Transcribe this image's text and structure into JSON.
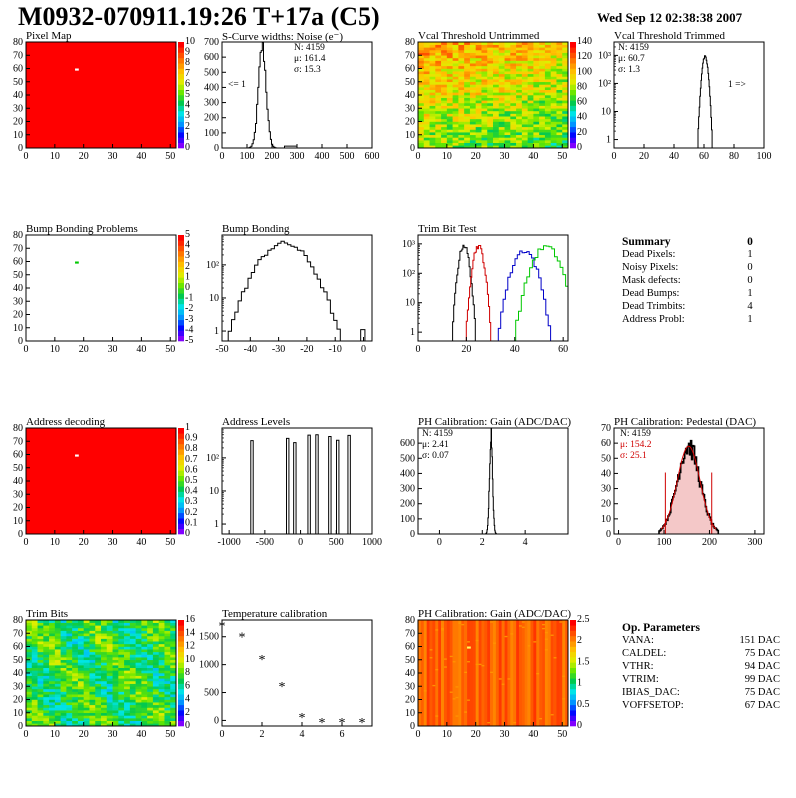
{
  "header": {
    "title": "M0932-070911.19:26 T+17a (C5)",
    "date": "Wed Sep 12 02:38:38 2007"
  },
  "colors": {
    "frame": "#000000",
    "hist_line": "#000000",
    "red_series": "#d00000",
    "blue_series": "#0000c8",
    "green_series": "#00c800",
    "map_red": "#ff0000"
  },
  "chart_data": [
    {
      "id": "pixel-map",
      "type": "heatmap",
      "title": "Pixel Map",
      "xlim": [
        0,
        52
      ],
      "ylim": [
        0,
        80
      ],
      "xticks": [
        0,
        10,
        20,
        30,
        40,
        50
      ],
      "yticks": [
        0,
        10,
        20,
        30,
        40,
        50,
        60,
        70,
        80
      ],
      "zlim": [
        0,
        10
      ],
      "zticks": [
        0,
        1,
        2,
        3,
        4,
        5,
        6,
        7,
        8,
        9,
        10
      ],
      "fill": "uniform",
      "fill_value": 10,
      "special_pixel": [
        17,
        59
      ]
    },
    {
      "id": "noise",
      "type": "line",
      "title": "S-Curve widths: Noise (e⁻)",
      "xlim": [
        0,
        600
      ],
      "ylim": [
        0,
        700
      ],
      "xticks": [
        0,
        100,
        200,
        300,
        400,
        500,
        600
      ],
      "yticks": [
        0,
        100,
        200,
        300,
        400,
        500,
        600,
        700
      ],
      "peak_mu": 161.4,
      "peak_sigma": 15.3,
      "peak_height": 670,
      "stats": [
        "N: 4159",
        "μ: 161.4",
        "σ: 15.3"
      ],
      "annotation": "<= 1"
    },
    {
      "id": "vcal-untrimmed",
      "type": "heatmap",
      "title": "Vcal Threshold Untrimmed",
      "xlim": [
        0,
        52
      ],
      "ylim": [
        0,
        80
      ],
      "xticks": [
        0,
        10,
        20,
        30,
        40,
        50
      ],
      "yticks": [
        0,
        10,
        20,
        30,
        40,
        50,
        60,
        70,
        80
      ],
      "zlim": [
        0,
        140
      ],
      "zticks": [
        0,
        20,
        40,
        60,
        80,
        100,
        120,
        140
      ],
      "fill": "noisy_gradient"
    },
    {
      "id": "vcal-trimmed",
      "type": "line",
      "title": "Vcal Threshold Trimmed",
      "xlim": [
        0,
        100
      ],
      "ylim_log": [
        0.5,
        3000
      ],
      "xticks": [
        0,
        20,
        40,
        60,
        80,
        100
      ],
      "yticks_log": [
        1,
        10,
        100,
        1000
      ],
      "ytick_labels": [
        "1",
        "10",
        "10²",
        "10³"
      ],
      "peak_mu": 60.7,
      "peak_sigma": 1.3,
      "peak_height": 900,
      "stats": [
        "N: 4159",
        "μ: 60.7",
        "σ: 1.3"
      ],
      "annotation": "1 =>"
    },
    {
      "id": "bump-map",
      "type": "heatmap",
      "title": "Bump Bonding Problems",
      "xlim": [
        0,
        52
      ],
      "ylim": [
        0,
        80
      ],
      "xticks": [
        0,
        10,
        20,
        30,
        40,
        50
      ],
      "yticks": [
        0,
        10,
        20,
        30,
        40,
        50,
        60,
        70,
        80
      ],
      "zlim": [
        -5,
        5
      ],
      "zticks": [
        -5,
        -4,
        -3,
        -2,
        -1,
        0,
        1,
        2,
        3,
        4,
        5
      ],
      "fill": "empty",
      "special_pixel": [
        17,
        59
      ]
    },
    {
      "id": "bump-bonding",
      "type": "line",
      "title": "Bump Bonding",
      "xlim": [
        -50,
        3
      ],
      "ylim_log": [
        0.5,
        800
      ],
      "xticks": [
        -50,
        -40,
        -30,
        -20,
        -10,
        0
      ],
      "yticks_log": [
        1,
        10,
        100
      ],
      "ytick_labels": [
        "1",
        "10",
        "10²"
      ],
      "peak_mu": -28,
      "peak_sigma": 5.5,
      "peak_height": 450
    },
    {
      "id": "trim-bit-test",
      "type": "line",
      "title": "Trim Bit Test",
      "xlim": [
        0,
        62
      ],
      "ylim_log": [
        0.5,
        2000
      ],
      "xticks": [
        0,
        20,
        40,
        60
      ],
      "yticks_log": [
        1,
        10,
        100,
        1000
      ],
      "ytick_labels": [
        "1",
        "10",
        "10²",
        "10³"
      ],
      "series": [
        {
          "color": "#000000",
          "mu": 19.0,
          "sigma": 1.3,
          "height": 900
        },
        {
          "color": "#d00000",
          "mu": 25.0,
          "sigma": 1.4,
          "height": 850
        },
        {
          "color": "#0000c8",
          "mu": 44.0,
          "sigma": 3.0,
          "height": 600
        },
        {
          "color": "#00c800",
          "mu": 53.0,
          "sigma": 3.5,
          "height": 800
        }
      ]
    },
    {
      "id": "address-map",
      "type": "heatmap",
      "title": "Address decoding",
      "xlim": [
        0,
        52
      ],
      "ylim": [
        0,
        80
      ],
      "xticks": [
        0,
        10,
        20,
        30,
        40,
        50
      ],
      "yticks": [
        0,
        10,
        20,
        30,
        40,
        50,
        60,
        70,
        80
      ],
      "zlim": [
        0,
        1
      ],
      "zticks": [
        0,
        0.1,
        0.2,
        0.3,
        0.4,
        0.5,
        0.6,
        0.7,
        0.8,
        0.9,
        1
      ],
      "fill": "uniform",
      "fill_value": 1,
      "special_pixel": [
        17,
        59
      ]
    },
    {
      "id": "address-levels",
      "type": "line",
      "title": "Address Levels",
      "xlim": [
        -1100,
        1000
      ],
      "ylim_log": [
        0.5,
        800
      ],
      "xticks": [
        -1000,
        -500,
        0,
        500,
        1000
      ],
      "yticks_log": [
        1,
        10,
        100
      ],
      "ytick_labels": [
        "1",
        "10",
        "10²"
      ],
      "spikes": [
        -680,
        -180,
        -80,
        120,
        230,
        410,
        520,
        680
      ],
      "spike_height": 400
    },
    {
      "id": "ph-gain",
      "type": "line",
      "title": "PH Calibration: Gain (ADC/DAC)",
      "xlim": [
        -1,
        6
      ],
      "ylim": [
        0,
        700
      ],
      "xticks": [
        0,
        2,
        4
      ],
      "yticks": [
        0,
        100,
        200,
        300,
        400,
        500,
        600
      ],
      "peak_mu": 2.41,
      "peak_sigma": 0.07,
      "peak_height": 670,
      "stats": [
        "N: 4159",
        "μ: 2.41",
        "σ: 0.07"
      ]
    },
    {
      "id": "ph-pedestal",
      "type": "line",
      "title": "PH Calibration: Pedestal (DAC)",
      "xlim": [
        -10,
        320
      ],
      "ylim": [
        0,
        70
      ],
      "xticks": [
        0,
        100,
        200,
        300
      ],
      "yticks": [
        0,
        10,
        20,
        30,
        40,
        50,
        60,
        70
      ],
      "peak_mu": 154.2,
      "peak_sigma": 25.1,
      "peak_height": 58,
      "fit_markers": [
        103,
        205
      ],
      "stats": [
        "N: 4159",
        "μ: 154.2",
        "σ: 25.1"
      ]
    },
    {
      "id": "trim-bits",
      "type": "heatmap",
      "title": "Trim Bits",
      "xlim": [
        0,
        52
      ],
      "ylim": [
        0,
        80
      ],
      "xticks": [
        0,
        10,
        20,
        30,
        40,
        50
      ],
      "yticks": [
        0,
        10,
        20,
        30,
        40,
        50,
        60,
        70,
        80
      ],
      "zlim": [
        0,
        16
      ],
      "zticks": [
        0,
        2,
        4,
        6,
        8,
        10,
        12,
        14,
        16
      ],
      "fill": "noisy_mid"
    },
    {
      "id": "temperature",
      "type": "scatter",
      "title": "Temperature calibration",
      "xlim": [
        0,
        7.5
      ],
      "ylim": [
        -100,
        1800
      ],
      "xticks": [
        0,
        2,
        4,
        6
      ],
      "yticks": [
        0,
        500,
        1000,
        1500
      ],
      "x": [
        0,
        1,
        2,
        3,
        4,
        5,
        6,
        7
      ],
      "y": [
        1700,
        1500,
        1100,
        620,
        60,
        -30,
        -30,
        -30
      ]
    },
    {
      "id": "ph-gain-map",
      "type": "heatmap",
      "title": "PH Calibration: Gain (ADC/DAC)",
      "xlim": [
        0,
        52
      ],
      "ylim": [
        0,
        80
      ],
      "xticks": [
        0,
        10,
        20,
        30,
        40,
        50
      ],
      "yticks": [
        0,
        10,
        20,
        30,
        40,
        50,
        60,
        70,
        80
      ],
      "zlim": [
        0,
        2.5
      ],
      "zticks": [
        0,
        0.5,
        1,
        1.5,
        2,
        2.5
      ],
      "fill": "red_columns",
      "special_pixel": [
        17,
        59
      ]
    }
  ],
  "summary": {
    "title": "Summary",
    "total": "0",
    "rows": [
      {
        "label": "Dead Pixels:",
        "value": "1"
      },
      {
        "label": "Noisy Pixels:",
        "value": "0"
      },
      {
        "label": "Mask defects:",
        "value": "0"
      },
      {
        "label": "Dead Bumps:",
        "value": "1"
      },
      {
        "label": "Dead Trimbits:",
        "value": "4"
      },
      {
        "label": "Address Probl:",
        "value": "1"
      }
    ]
  },
  "op_params": {
    "title": "Op. Parameters",
    "rows": [
      {
        "label": "VANA:",
        "value": "151 DAC"
      },
      {
        "label": "CALDEL:",
        "value": "75 DAC"
      },
      {
        "label": "VTHR:",
        "value": "94 DAC"
      },
      {
        "label": "VTRIM:",
        "value": "99 DAC"
      },
      {
        "label": "IBIAS_DAC:",
        "value": "75 DAC"
      },
      {
        "label": "VOFFSETOP:",
        "value": "67 DAC"
      }
    ]
  }
}
